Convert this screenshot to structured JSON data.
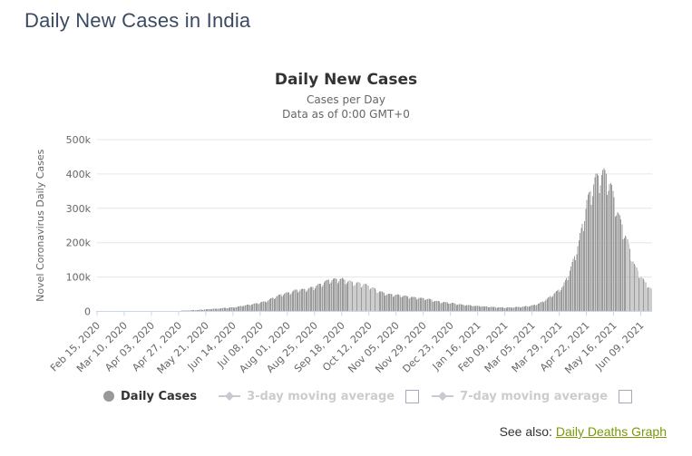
{
  "page": {
    "title": "Daily New Cases in India"
  },
  "chart": {
    "title": "Daily New Cases",
    "subtitle_line1": "Cases per Day",
    "subtitle_line2": "Data as of 0:00 GMT+0"
  },
  "legend": {
    "daily_cases_label": "Daily Cases",
    "avg3_label": "3-day moving average",
    "avg7_label": "7-day moving average"
  },
  "footer": {
    "see_also_label": "See also:",
    "link_label": "Daily Deaths Graph"
  },
  "colors": {
    "page_title": "#3b4a63",
    "bar": "#9b9b9b",
    "grid": "#e6e6e6",
    "axis_line": "#ccd6eb",
    "tick_text": "#666666",
    "chart_title_text": "#333333",
    "legend_active": "#333333",
    "legend_disabled": "#cccccc",
    "checkbox_border": "#a9a9bb",
    "link_green": "#7a9908"
  },
  "chart_data": {
    "type": "bar",
    "title": "Daily New Cases",
    "subtitle": [
      "Cases per Day",
      "Data as of 0:00 GMT+0"
    ],
    "xlabel": "",
    "ylabel": "Novel Coronavirus Daily Cases",
    "ylim": [
      0,
      500000
    ],
    "y_tick_values": [
      0,
      100000,
      200000,
      300000,
      400000,
      500000
    ],
    "y_tick_labels": [
      "0",
      "100k",
      "200k",
      "300k",
      "400k",
      "500k"
    ],
    "grid": true,
    "legend_position": "bottom",
    "x_range": [
      "2020-02-15",
      "2021-06-18"
    ],
    "x_tick_every_days": 24,
    "x_tick_labels": [
      "Feb 15, 2020",
      "Mar 10, 2020",
      "Apr 03, 2020",
      "Apr 27, 2020",
      "May 21, 2020",
      "Jun 14, 2020",
      "Jul 08, 2020",
      "Aug 01, 2020",
      "Aug 25, 2020",
      "Sep 18, 2020",
      "Oct 12, 2020",
      "Nov 05, 2020",
      "Nov 29, 2020",
      "Dec 23, 2020",
      "Jan 16, 2021",
      "Feb 09, 2021",
      "Mar 05, 2021",
      "Mar 29, 2021",
      "Apr 22, 2021",
      "May 16, 2021",
      "Jun 09, 2021"
    ],
    "series": [
      {
        "name": "Daily Cases",
        "type": "column",
        "color": "#9b9b9b",
        "visible": true,
        "anchors": [
          [
            "2020-02-15",
            0
          ],
          [
            "2020-03-01",
            2
          ],
          [
            "2020-03-15",
            15
          ],
          [
            "2020-03-22",
            70
          ],
          [
            "2020-03-29",
            200
          ],
          [
            "2020-04-05",
            520
          ],
          [
            "2020-04-12",
            830
          ],
          [
            "2020-04-19",
            1350
          ],
          [
            "2020-04-26",
            1900
          ],
          [
            "2020-05-03",
            2680
          ],
          [
            "2020-05-10",
            3390
          ],
          [
            "2020-05-17",
            4990
          ],
          [
            "2020-05-24",
            6760
          ],
          [
            "2020-05-31",
            8330
          ],
          [
            "2020-06-07",
            10020
          ],
          [
            "2020-06-14",
            11930
          ],
          [
            "2020-06-21",
            15410
          ],
          [
            "2020-06-28",
            19610
          ],
          [
            "2020-07-05",
            23940
          ],
          [
            "2020-07-12",
            28700
          ],
          [
            "2020-07-19",
            38900
          ],
          [
            "2020-07-26",
            49000
          ],
          [
            "2020-08-02",
            54740
          ],
          [
            "2020-08-09",
            62170
          ],
          [
            "2020-08-16",
            63490
          ],
          [
            "2020-08-23",
            69240
          ],
          [
            "2020-08-30",
            78760
          ],
          [
            "2020-09-06",
            90630
          ],
          [
            "2020-09-13",
            92400
          ],
          [
            "2020-09-17",
            94000
          ],
          [
            "2020-09-24",
            86510
          ],
          [
            "2020-10-01",
            81480
          ],
          [
            "2020-10-08",
            78520
          ],
          [
            "2020-10-15",
            67710
          ],
          [
            "2020-10-22",
            55840
          ],
          [
            "2020-10-29",
            49880
          ],
          [
            "2020-11-05",
            47640
          ],
          [
            "2020-11-12",
            44680
          ],
          [
            "2020-11-19",
            41100
          ],
          [
            "2020-11-26",
            38620
          ],
          [
            "2020-12-03",
            35550
          ],
          [
            "2020-12-10",
            29610
          ],
          [
            "2020-12-17",
            26310
          ],
          [
            "2020-12-24",
            23950
          ],
          [
            "2020-12-31",
            20040
          ],
          [
            "2021-01-07",
            18140
          ],
          [
            "2021-01-14",
            15920
          ],
          [
            "2021-01-21",
            14540
          ],
          [
            "2021-01-28",
            12850
          ],
          [
            "2021-02-04",
            11670
          ],
          [
            "2021-02-11",
            10920
          ],
          [
            "2021-02-18",
            12190
          ],
          [
            "2021-02-25",
            13990
          ],
          [
            "2021-03-04",
            16540
          ],
          [
            "2021-03-11",
            22850
          ],
          [
            "2021-03-18",
            35870
          ],
          [
            "2021-03-25",
            53480
          ],
          [
            "2021-04-01",
            72330
          ],
          [
            "2021-04-08",
            126260
          ],
          [
            "2021-04-15",
            200740
          ],
          [
            "2021-04-22",
            314840
          ],
          [
            "2021-04-29",
            379260
          ],
          [
            "2021-05-06",
            400000
          ],
          [
            "2021-05-09",
            393000
          ],
          [
            "2021-05-13",
            362730
          ],
          [
            "2021-05-20",
            276110
          ],
          [
            "2021-05-27",
            211300
          ],
          [
            "2021-06-03",
            134150
          ],
          [
            "2021-06-10",
            94050
          ],
          [
            "2021-06-17",
            67210
          ],
          [
            "2021-06-18",
            62480
          ]
        ]
      },
      {
        "name": "3-day moving average",
        "type": "line",
        "visible": false
      },
      {
        "name": "7-day moving average",
        "type": "line",
        "visible": false
      }
    ],
    "render_hints": {
      "weekday_factors": [
        1.02,
        0.88,
        0.93,
        1.0,
        1.03,
        1.05,
        1.04
      ]
    }
  }
}
